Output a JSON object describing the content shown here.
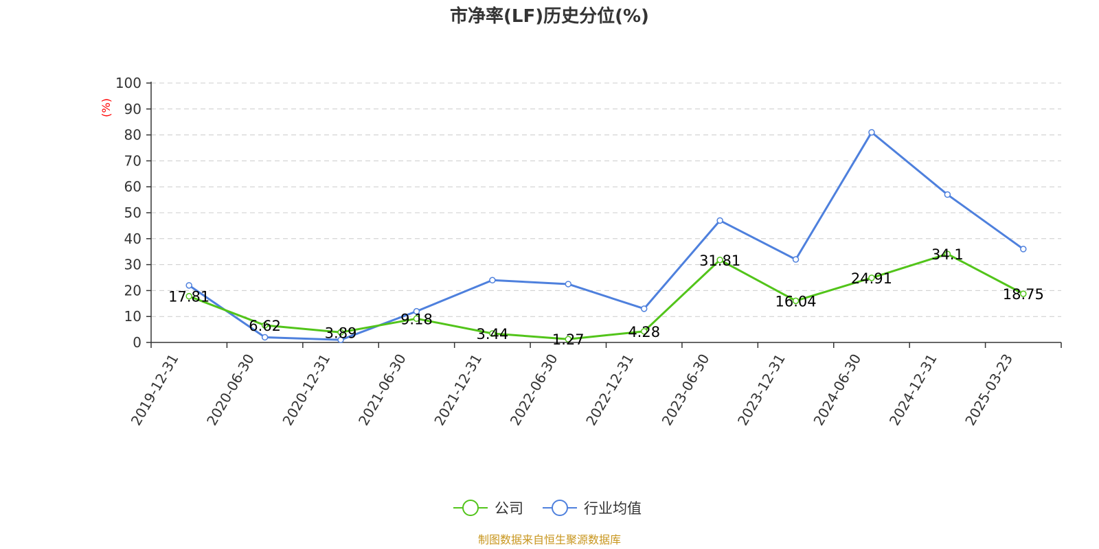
{
  "chart_data": {
    "type": "line",
    "title": "市净率(LF)历史分位(%)",
    "y_unit": "(%)",
    "categories": [
      "2019-12-31",
      "2020-06-30",
      "2020-12-31",
      "2021-06-30",
      "2021-12-31",
      "2022-06-30",
      "2022-12-31",
      "2023-06-30",
      "2023-12-31",
      "2024-06-30",
      "2024-12-31",
      "2025-03-23"
    ],
    "ylim": [
      0,
      100
    ],
    "yticks": [
      0,
      10,
      20,
      30,
      40,
      50,
      60,
      70,
      80,
      90,
      100
    ],
    "grid": true,
    "legend_position": "bottom-center",
    "series": [
      {
        "name": "公司",
        "color": "#52c41a",
        "values": [
          17.81,
          6.62,
          3.89,
          9.18,
          3.44,
          1.27,
          4.28,
          31.81,
          16.04,
          24.91,
          34.1,
          18.75
        ],
        "labels": [
          "17.81",
          "6.62",
          "3.89",
          "9.18",
          "3.44",
          "1.27",
          "4.28",
          "31.81",
          "16.04",
          "24.91",
          "34.1",
          "18.75"
        ]
      },
      {
        "name": "行业均值",
        "color": "#4e80dd",
        "values": [
          22,
          2,
          1,
          12,
          24,
          22.5,
          13,
          47,
          32,
          81,
          57,
          36
        ]
      }
    ],
    "source": "制图数据来自恒生聚源数据库"
  }
}
